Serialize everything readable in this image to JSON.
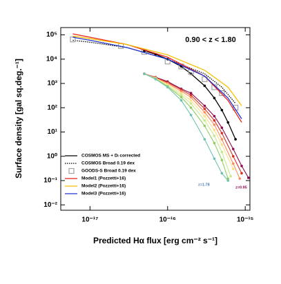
{
  "chart_data": {
    "type": "line",
    "log_x": true,
    "log_y": true,
    "annotation": "0.90 < z < 1.80",
    "xlabel": "Predicted Hα flux [erg cm⁻² s⁻¹]",
    "ylabel": "Surface density [gal sq.deg.⁻¹]",
    "xlim": [
      4.2e-18,
      1.15e-15
    ],
    "ylim": [
      0.006,
      200000
    ],
    "xticks": [
      {
        "value": 1e-17,
        "label": "10⁻¹⁷"
      },
      {
        "value": 1e-16,
        "label": "10⁻¹⁶"
      },
      {
        "value": 1e-15,
        "label": "10⁻¹⁵"
      }
    ],
    "yticks": [
      {
        "value": 0.01,
        "label": "10⁻²"
      },
      {
        "value": 0.1,
        "label": "10⁻¹"
      },
      {
        "value": 1,
        "label": "10⁰"
      },
      {
        "value": 10,
        "label": "10¹"
      },
      {
        "value": 100,
        "label": "10²"
      },
      {
        "value": 1000,
        "label": "10³"
      },
      {
        "value": 10000,
        "label": "10⁴"
      },
      {
        "value": 100000,
        "label": "10⁵"
      }
    ],
    "grid": false,
    "legend": "lower left",
    "labels": [
      {
        "text": "z=1.78",
        "color": "#4a7fb5"
      },
      {
        "text": "z=0.95",
        "color": "#8b0a50"
      }
    ],
    "series": [
      {
        "name": "COSMOS MS + Dₗ corrected",
        "color": "#000000",
        "style": "solid",
        "marker": "circle",
        "x": [
          5e-17,
          7e-17,
          1e-16,
          1.5e-16,
          2e-16,
          3e-16,
          4e-16,
          5e-16,
          6e-16,
          7.5e-16
        ],
        "values": [
          22000,
          16000,
          10000,
          5000,
          2500,
          800,
          250,
          80,
          25,
          5
        ]
      },
      {
        "name": "COSMOS Broad 0.19 dex",
        "color": "#000000",
        "style": "dotted",
        "marker": null,
        "x": [
          6e-18,
          1e-17,
          3e-17,
          1e-16,
          3e-16,
          5e-16,
          7.5e-16
        ],
        "values": [
          60000,
          50000,
          30000,
          10000,
          2500,
          700,
          150
        ]
      },
      {
        "name": "GOODS-S Broad 0.19 dex",
        "color": "#a0a0a0",
        "style": "none",
        "marker": "square",
        "x": [
          6e-18,
          2.5e-17,
          5e-17,
          1e-16,
          1.5e-16,
          2e-16,
          3e-16,
          4e-16,
          5e-16,
          7.5e-16
        ],
        "values": [
          65000,
          35000,
          20000,
          8000,
          5000,
          3000,
          1500,
          700,
          400,
          100
        ]
      },
      {
        "name": "Model1 (Pozzetti+16)",
        "color": "#e8231c",
        "style": "solid",
        "marker": null,
        "x": [
          6e-18,
          1e-17,
          3e-17,
          1e-16,
          3e-16,
          6e-16,
          9e-16
        ],
        "values": [
          110000,
          80000,
          40000,
          12000,
          2000,
          200,
          25
        ]
      },
      {
        "name": "Model2 (Pozzetti+16)",
        "color": "#f5c000",
        "style": "solid",
        "marker": null,
        "x": [
          6e-18,
          1e-17,
          3e-17,
          1e-16,
          3e-16,
          6e-16,
          9e-16
        ],
        "values": [
          90000,
          70000,
          40000,
          15000,
          3500,
          700,
          120
        ]
      },
      {
        "name": "Model3 (Pozzetti+16)",
        "color": "#2233cc",
        "style": "solid",
        "marker": null,
        "x": [
          6e-18,
          1e-17,
          3e-17,
          1e-16,
          3e-16,
          6e-16,
          9e-16
        ],
        "values": [
          80000,
          60000,
          30000,
          10000,
          2000,
          250,
          35
        ]
      },
      {
        "color": "#8b0a50",
        "style": "solid",
        "marker": "circle",
        "x": [
          5e-17,
          7e-17,
          1e-16,
          1.5e-16,
          2e-16,
          3e-16,
          4e-16,
          5e-16,
          7e-16,
          9e-16,
          1.1e-15
        ],
        "values": [
          2500,
          1800,
          1200,
          600,
          400,
          120,
          45,
          15,
          2,
          0.4,
          0.13
        ]
      },
      {
        "color": "#d7301f",
        "style": "solid",
        "marker": "circle",
        "x": [
          5e-17,
          7e-17,
          1e-16,
          1.5e-16,
          2e-16,
          3e-16,
          4e-16,
          5e-16,
          7e-16,
          9e-16
        ],
        "values": [
          2500,
          1750,
          1100,
          550,
          330,
          90,
          30,
          9,
          1,
          0.2
        ]
      },
      {
        "color": "#fc8d59",
        "style": "solid",
        "marker": "circle",
        "x": [
          5e-17,
          7e-17,
          1e-16,
          1.5e-16,
          2e-16,
          3e-16,
          4e-16,
          5e-16,
          7e-16,
          8.5e-16
        ],
        "values": [
          2500,
          1700,
          1000,
          480,
          270,
          65,
          20,
          5,
          0.5,
          0.12
        ]
      },
      {
        "color": "#fee08b",
        "style": "solid",
        "marker": "circle",
        "x": [
          5e-17,
          7e-17,
          1e-16,
          1.5e-16,
          2e-16,
          3e-16,
          4e-16,
          5e-16,
          7e-16
        ],
        "values": [
          2500,
          1650,
          900,
          400,
          200,
          45,
          12,
          3,
          0.3
        ]
      },
      {
        "color": "#c7e98b",
        "style": "solid",
        "marker": "circle",
        "x": [
          5e-17,
          7e-17,
          1e-16,
          1.5e-16,
          2e-16,
          3e-16,
          4e-16,
          5e-16,
          6.5e-16
        ],
        "values": [
          2500,
          1600,
          800,
          330,
          150,
          30,
          7,
          1.5,
          0.15
        ]
      },
      {
        "color": "#91cf60",
        "style": "solid",
        "marker": "circle",
        "x": [
          5e-17,
          7e-17,
          1e-16,
          1.5e-16,
          2e-16,
          3e-16,
          4e-16,
          5e-16,
          6e-16
        ],
        "values": [
          2500,
          1550,
          750,
          270,
          100,
          18,
          3.5,
          0.7,
          0.12
        ]
      },
      {
        "color": "#6fc2b0",
        "style": "solid",
        "marker": "circle",
        "x": [
          5e-17,
          7e-17,
          1e-16,
          1.5e-16,
          2e-16,
          3e-16,
          4e-16,
          5e-16,
          6e-16
        ],
        "values": [
          2500,
          1500,
          700,
          200,
          50,
          5,
          0.8,
          0.2,
          0.1
        ]
      }
    ]
  }
}
